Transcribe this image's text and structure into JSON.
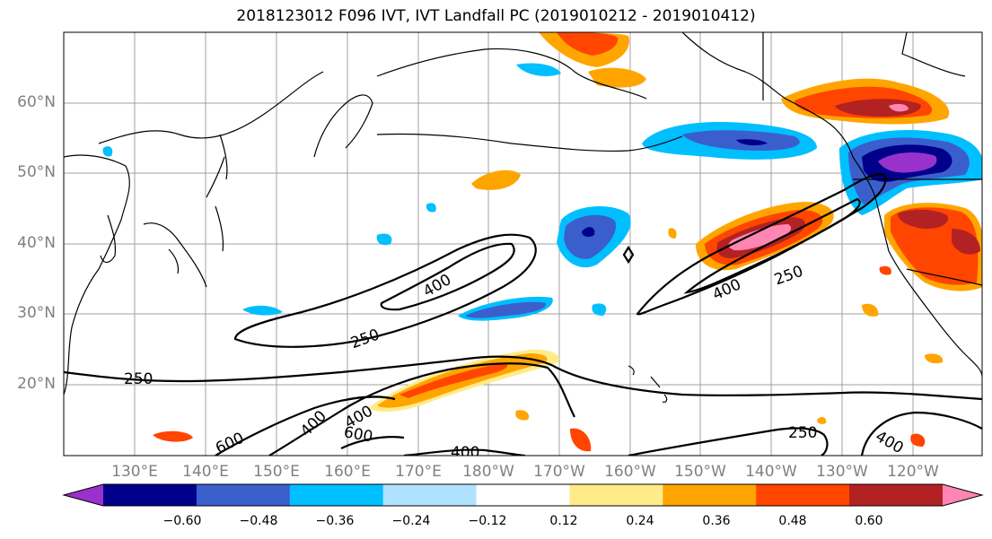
{
  "title": "2018123012 F096 IVT, IVT Landfall PC (2019010212 - 2019010412)",
  "map": {
    "lat_labels": [
      "60°N",
      "50°N",
      "40°N",
      "30°N",
      "20°N"
    ],
    "lon_labels": [
      "130°E",
      "140°E",
      "150°E",
      "160°E",
      "170°E",
      "180°W",
      "170°W",
      "160°W",
      "150°W",
      "140°W",
      "130°W",
      "120°W"
    ],
    "contour_labels": [
      "400",
      "250",
      "250",
      "400",
      "600",
      "400",
      "400",
      "250",
      "400",
      "400",
      "250",
      "600"
    ]
  },
  "colorbar": {
    "tick_labels": [
      "−0.60",
      "−0.48",
      "−0.36",
      "−0.24",
      "−0.12",
      "0.12",
      "0.24",
      "0.36",
      "0.48",
      "0.60"
    ],
    "colors": [
      "#9932cc",
      "#00008b",
      "#3a5fcd",
      "#00bfff",
      "#b0e2ff",
      "#ffffff",
      "#ffeb8a",
      "#ffa500",
      "#ff4500",
      "#b22222",
      "#ff85b3"
    ]
  }
}
